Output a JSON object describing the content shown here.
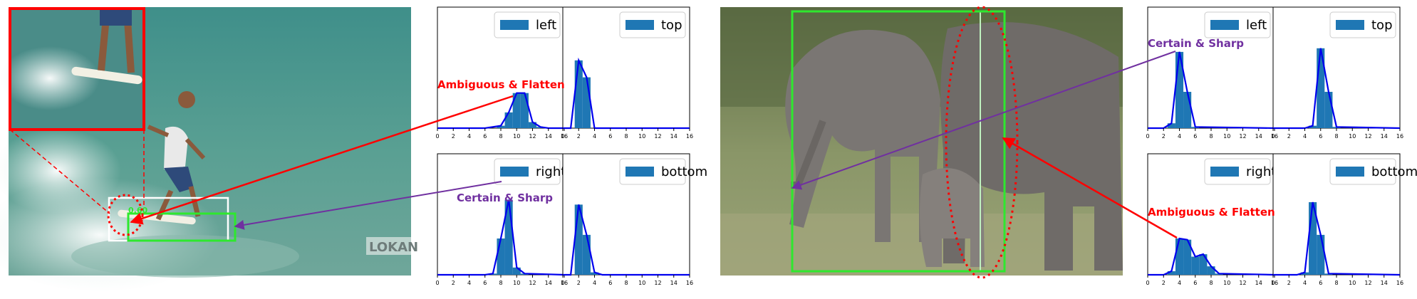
{
  "colors": {
    "bar": "#1f77b4",
    "curve": "#0000ee",
    "annotation_red": "#ff0000",
    "annotation_purple": "#7030a0",
    "box_green": "#2ee82e",
    "box_white": "#ffffff",
    "ocean": "#4f9a8f",
    "grass": "#7d8f5a",
    "elephant": "#7a7673"
  },
  "photos": {
    "surfer": {
      "watermark": "LOKAN",
      "box_label": "0.60"
    },
    "elephant": {}
  },
  "annotations": {
    "surfer_flatten": "Ambiguous & Flatten",
    "surfer_sharp": "Certain & Sharp",
    "elephant_sharp": "Certain & Sharp",
    "elephant_flatten": "Ambiguous & Flatten"
  },
  "chart_data": [
    {
      "type": "bar",
      "group": "surfer",
      "legend": "left",
      "x": [
        0,
        2,
        4,
        6,
        8,
        9,
        10,
        11,
        12,
        13,
        14,
        16
      ],
      "values": [
        0,
        0,
        0,
        0,
        0.02,
        0.13,
        0.29,
        0.29,
        0.05,
        0.01,
        0,
        0
      ],
      "xlim": [
        0,
        16
      ],
      "xticks": [
        0,
        2,
        4,
        6,
        8,
        10,
        12,
        14,
        16
      ],
      "ylim": [
        0,
        1
      ],
      "legend_position": "top-right"
    },
    {
      "type": "bar",
      "group": "surfer",
      "legend": "top",
      "x": [
        0,
        1,
        2,
        3,
        4,
        5,
        16
      ],
      "values": [
        0,
        0,
        0.56,
        0.42,
        0,
        0,
        0
      ],
      "xlim": [
        0,
        16
      ],
      "xticks": [
        0,
        2,
        4,
        6,
        8,
        10,
        12,
        14,
        16
      ],
      "ylim": [
        0,
        1
      ],
      "legend_position": "top-right"
    },
    {
      "type": "bar",
      "group": "surfer",
      "legend": "right",
      "x": [
        0,
        6,
        7,
        8,
        9,
        10,
        11,
        16
      ],
      "values": [
        0,
        0,
        0.01,
        0.3,
        0.62,
        0.06,
        0.01,
        0
      ],
      "xlim": [
        0,
        16
      ],
      "xticks": [
        0,
        2,
        4,
        6,
        8,
        10,
        12,
        14,
        16
      ],
      "ylim": [
        0,
        1
      ],
      "legend_position": "top-right"
    },
    {
      "type": "bar",
      "group": "surfer",
      "legend": "bottom",
      "x": [
        0,
        1,
        2,
        3,
        4,
        5,
        16
      ],
      "values": [
        0,
        0,
        0.58,
        0.33,
        0.02,
        0,
        0
      ],
      "xlim": [
        0,
        16
      ],
      "xticks": [
        0,
        2,
        4,
        6,
        8,
        10,
        12,
        14,
        16
      ],
      "ylim": [
        0,
        1
      ],
      "legend_position": "top-right"
    },
    {
      "type": "bar",
      "group": "elephant",
      "legend": "left",
      "x": [
        0,
        2,
        3,
        4,
        5,
        6,
        16
      ],
      "values": [
        0,
        0,
        0.04,
        0.63,
        0.3,
        0.01,
        0
      ],
      "xlim": [
        0,
        16
      ],
      "xticks": [
        0,
        2,
        4,
        6,
        8,
        10,
        12,
        14,
        16
      ],
      "ylim": [
        0,
        1
      ],
      "legend_position": "top-right"
    },
    {
      "type": "bar",
      "group": "elephant",
      "legend": "top",
      "x": [
        0,
        4,
        5,
        6,
        7,
        8,
        16
      ],
      "values": [
        0,
        0,
        0.02,
        0.66,
        0.3,
        0.01,
        0
      ],
      "xlim": [
        0,
        16
      ],
      "xticks": [
        0,
        2,
        4,
        6,
        8,
        10,
        12,
        14,
        16
      ],
      "ylim": [
        0,
        1
      ],
      "legend_position": "top-right"
    },
    {
      "type": "bar",
      "group": "elephant",
      "legend": "right",
      "x": [
        0,
        2,
        3,
        4,
        5,
        6,
        7,
        8,
        9,
        16
      ],
      "values": [
        0,
        0,
        0.03,
        0.3,
        0.29,
        0.15,
        0.17,
        0.07,
        0.01,
        0
      ],
      "xlim": [
        0,
        16
      ],
      "xticks": [
        0,
        2,
        4,
        6,
        8,
        10,
        12,
        14,
        16
      ],
      "ylim": [
        0,
        1
      ],
      "legend_position": "top-right"
    },
    {
      "type": "bar",
      "group": "elephant",
      "legend": "bottom",
      "x": [
        0,
        3,
        4,
        5,
        6,
        7,
        16
      ],
      "values": [
        0,
        0,
        0.02,
        0.6,
        0.33,
        0.01,
        0
      ],
      "xlim": [
        0,
        16
      ],
      "xticks": [
        0,
        2,
        4,
        6,
        8,
        10,
        12,
        14,
        16
      ],
      "ylim": [
        0,
        1
      ],
      "legend_position": "top-right"
    }
  ]
}
